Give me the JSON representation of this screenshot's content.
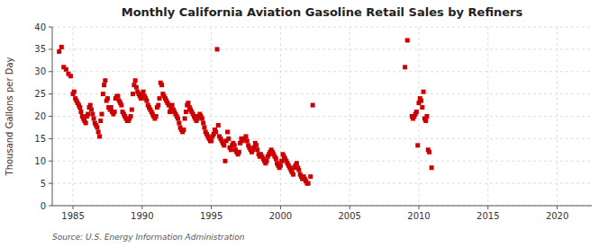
{
  "chart_data": {
    "type": "scatter",
    "title": "Monthly California Aviation Gasoline Retail Sales by Refiners",
    "ylabel": "Thousand Gallons per Day",
    "source": "Source: U.S. Energy Information Administration",
    "color": "#cc0000",
    "marker": "square",
    "grid": true,
    "xlim": [
      1983.5,
      2022.5
    ],
    "ylim": [
      0,
      40
    ],
    "xticks": [
      1985,
      1990,
      1995,
      2000,
      2005,
      2010,
      2015,
      2020
    ],
    "yticks": [
      0,
      5,
      10,
      15,
      20,
      25,
      30,
      35,
      40
    ],
    "x": [
      1984.0,
      1984.17,
      1984.33,
      1984.5,
      1984.67,
      1984.83,
      1985.0,
      1985.08,
      1985.17,
      1985.25,
      1985.33,
      1985.42,
      1985.5,
      1985.58,
      1985.67,
      1985.75,
      1985.83,
      1985.92,
      1986.0,
      1986.08,
      1986.17,
      1986.25,
      1986.33,
      1986.42,
      1986.5,
      1986.58,
      1986.67,
      1986.75,
      1986.83,
      1986.92,
      1987.0,
      1987.08,
      1987.17,
      1987.25,
      1987.33,
      1987.42,
      1987.5,
      1987.58,
      1987.67,
      1987.75,
      1987.83,
      1987.92,
      1988.0,
      1988.08,
      1988.17,
      1988.25,
      1988.33,
      1988.42,
      1988.5,
      1988.58,
      1988.67,
      1988.75,
      1988.83,
      1988.92,
      1989.0,
      1989.08,
      1989.17,
      1989.25,
      1989.33,
      1989.42,
      1989.5,
      1989.58,
      1989.67,
      1989.75,
      1989.83,
      1989.92,
      1990.0,
      1990.08,
      1990.17,
      1990.25,
      1990.33,
      1990.42,
      1990.5,
      1990.58,
      1990.67,
      1990.75,
      1990.83,
      1990.92,
      1991.0,
      1991.08,
      1991.17,
      1991.25,
      1991.33,
      1991.42,
      1991.5,
      1991.58,
      1991.67,
      1991.75,
      1991.83,
      1991.92,
      1992.0,
      1992.08,
      1992.17,
      1992.25,
      1992.33,
      1992.42,
      1992.5,
      1992.58,
      1992.67,
      1992.75,
      1992.83,
      1992.92,
      1993.0,
      1993.08,
      1993.17,
      1993.25,
      1993.33,
      1993.42,
      1993.5,
      1993.58,
      1993.67,
      1993.75,
      1993.83,
      1993.92,
      1994.0,
      1994.08,
      1994.17,
      1994.25,
      1994.33,
      1994.42,
      1994.5,
      1994.58,
      1994.67,
      1994.75,
      1994.83,
      1994.92,
      1995.0,
      1995.08,
      1995.17,
      1995.25,
      1995.33,
      1995.42,
      1995.5,
      1995.58,
      1995.67,
      1995.75,
      1995.83,
      1995.92,
      1996.0,
      1996.08,
      1996.17,
      1996.25,
      1996.33,
      1996.42,
      1996.5,
      1996.58,
      1996.67,
      1996.75,
      1996.83,
      1996.92,
      1997.0,
      1997.08,
      1997.17,
      1997.25,
      1997.33,
      1997.42,
      1997.5,
      1997.58,
      1997.67,
      1997.75,
      1997.83,
      1997.92,
      1998.0,
      1998.08,
      1998.17,
      1998.25,
      1998.33,
      1998.42,
      1998.5,
      1998.58,
      1998.67,
      1998.75,
      1998.83,
      1998.92,
      1999.0,
      1999.08,
      1999.17,
      1999.25,
      1999.33,
      1999.42,
      1999.5,
      1999.58,
      1999.67,
      1999.75,
      1999.83,
      1999.92,
      2000.0,
      2000.08,
      2000.17,
      2000.25,
      2000.33,
      2000.42,
      2000.5,
      2000.58,
      2000.67,
      2000.75,
      2000.83,
      2000.92,
      2001.0,
      2001.08,
      2001.17,
      2001.25,
      2001.33,
      2001.42,
      2001.5,
      2001.58,
      2001.67,
      2001.75,
      2001.83,
      2001.92,
      2002.0,
      2002.17,
      2002.33,
      2009.0,
      2009.17,
      2009.5,
      2009.58,
      2009.67,
      2009.75,
      2009.83,
      2009.92,
      2010.0,
      2010.08,
      2010.17,
      2010.25,
      2010.33,
      2010.42,
      2010.5,
      2010.58,
      2010.67,
      2010.75,
      2010.92
    ],
    "values": [
      34.5,
      35.5,
      31.0,
      30.5,
      29.5,
      29.0,
      25.0,
      25.5,
      24.0,
      23.5,
      23.0,
      22.5,
      22.0,
      21.0,
      20.0,
      19.5,
      19.0,
      18.5,
      20.0,
      20.5,
      22.0,
      22.5,
      21.5,
      20.5,
      19.5,
      18.5,
      18.0,
      17.5,
      16.5,
      15.5,
      19.0,
      20.5,
      25.0,
      27.0,
      28.0,
      23.5,
      24.0,
      22.0,
      21.5,
      22.0,
      21.0,
      20.5,
      21.0,
      24.0,
      24.5,
      24.5,
      23.5,
      23.0,
      22.5,
      21.0,
      20.5,
      20.0,
      19.5,
      19.0,
      19.0,
      19.5,
      20.0,
      21.5,
      25.0,
      27.0,
      28.0,
      26.5,
      25.5,
      25.0,
      24.5,
      24.0,
      25.0,
      25.5,
      24.5,
      24.0,
      23.5,
      22.5,
      22.0,
      21.5,
      21.0,
      20.5,
      20.0,
      19.5,
      20.0,
      22.0,
      22.5,
      24.0,
      27.5,
      27.0,
      25.0,
      24.5,
      24.0,
      23.5,
      23.0,
      22.5,
      21.0,
      22.0,
      22.5,
      21.5,
      21.0,
      20.5,
      20.0,
      19.5,
      18.5,
      17.5,
      17.0,
      16.5,
      17.0,
      19.5,
      21.0,
      22.5,
      23.0,
      22.0,
      21.5,
      21.0,
      20.5,
      20.0,
      19.5,
      19.0,
      19.5,
      20.0,
      20.5,
      20.0,
      19.5,
      18.5,
      17.5,
      16.5,
      16.0,
      15.5,
      15.0,
      14.5,
      14.5,
      15.5,
      16.0,
      17.0,
      16.5,
      35.0,
      18.0,
      15.5,
      15.0,
      14.5,
      14.0,
      13.5,
      10.0,
      14.5,
      16.5,
      15.0,
      13.0,
      12.5,
      13.5,
      14.0,
      13.5,
      12.5,
      12.0,
      11.5,
      12.0,
      14.0,
      15.0,
      14.5,
      15.0,
      15.0,
      15.5,
      14.5,
      13.5,
      13.0,
      12.5,
      12.0,
      12.5,
      13.0,
      14.0,
      13.5,
      12.5,
      11.5,
      11.0,
      11.5,
      11.0,
      10.5,
      10.0,
      9.5,
      10.0,
      11.0,
      11.5,
      12.0,
      12.5,
      12.0,
      11.5,
      11.0,
      10.5,
      9.5,
      9.0,
      8.5,
      9.0,
      10.0,
      11.5,
      11.0,
      10.5,
      10.0,
      9.5,
      9.0,
      8.5,
      8.0,
      7.5,
      7.0,
      8.5,
      9.0,
      9.5,
      8.5,
      8.0,
      7.0,
      6.5,
      6.0,
      6.5,
      6.0,
      5.5,
      5.0,
      5.0,
      6.5,
      22.5,
      31.0,
      37.0,
      20.0,
      19.5,
      20.0,
      20.5,
      21.0,
      13.5,
      23.0,
      24.0,
      23.5,
      22.0,
      25.5,
      19.5,
      19.0,
      20.0,
      12.5,
      12.0,
      8.5
    ]
  }
}
